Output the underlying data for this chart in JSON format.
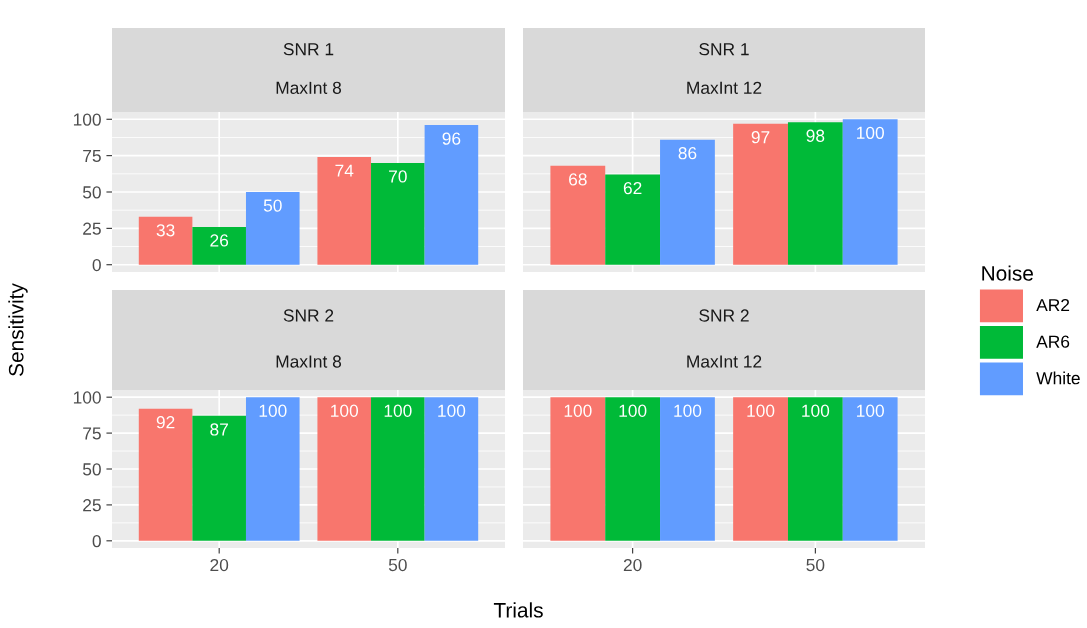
{
  "chart_data": [
    {
      "type": "bar",
      "title": "SNR 1",
      "subtitle": "MaxInt 8",
      "ylabel": "Sensitivity",
      "categories": [
        "20",
        "50"
      ],
      "series": [
        {
          "name": "AR2",
          "color": "#f8766d",
          "values": [
            33,
            74
          ]
        },
        {
          "name": "AR6",
          "color": "#00ba38",
          "values": [
            26,
            70
          ]
        },
        {
          "name": "White",
          "color": "#619cff",
          "values": [
            50,
            96
          ]
        }
      ],
      "ylim": [
        -5,
        105
      ],
      "yticks": [
        0,
        25,
        50,
        75,
        100
      ],
      "grid": true,
      "data_labels": true,
      "tick_labels": "y",
      "legend": "right",
      "legend_title": "Noise"
    },
    {
      "type": "bar",
      "title": "SNR 1",
      "subtitle": "MaxInt 12",
      "categories": [
        "20",
        "50"
      ],
      "series": [
        {
          "color": "#f8766d",
          "values": [
            68,
            97
          ]
        },
        {
          "color": "#00ba38",
          "values": [
            62,
            98
          ]
        },
        {
          "color": "#619cff",
          "values": [
            86,
            100
          ]
        }
      ],
      "ylim": [
        -5,
        105
      ],
      "yticks": [
        0,
        25,
        50,
        75,
        100
      ],
      "grid": true,
      "data_labels": true,
      "tick_labels": false
    },
    {
      "type": "bar",
      "title": "SNR 2",
      "subtitle": "MaxInt 8",
      "xlabel": "Trials",
      "categories": [
        "20",
        "50"
      ],
      "series": [
        {
          "color": "#f8766d",
          "values": [
            92,
            100
          ]
        },
        {
          "color": "#00ba38",
          "values": [
            87,
            100
          ]
        },
        {
          "color": "#619cff",
          "values": [
            100,
            100
          ]
        }
      ],
      "ylim": [
        -5,
        105
      ],
      "yticks": [
        0,
        25,
        50,
        75,
        100
      ],
      "grid": true,
      "data_labels": true
    },
    {
      "type": "bar",
      "title": "SNR 2",
      "subtitle": "MaxInt 12",
      "categories": [
        "20",
        "50"
      ],
      "series": [
        {
          "color": "#f8766d",
          "values": [
            100,
            100
          ]
        },
        {
          "color": "#00ba38",
          "values": [
            100,
            100
          ]
        },
        {
          "color": "#619cff",
          "values": [
            100,
            100
          ]
        }
      ],
      "ylim": [
        -5,
        105
      ],
      "yticks": [
        0,
        25,
        50,
        75,
        100
      ],
      "grid": true,
      "data_labels": true,
      "tick_labels": "x"
    }
  ]
}
